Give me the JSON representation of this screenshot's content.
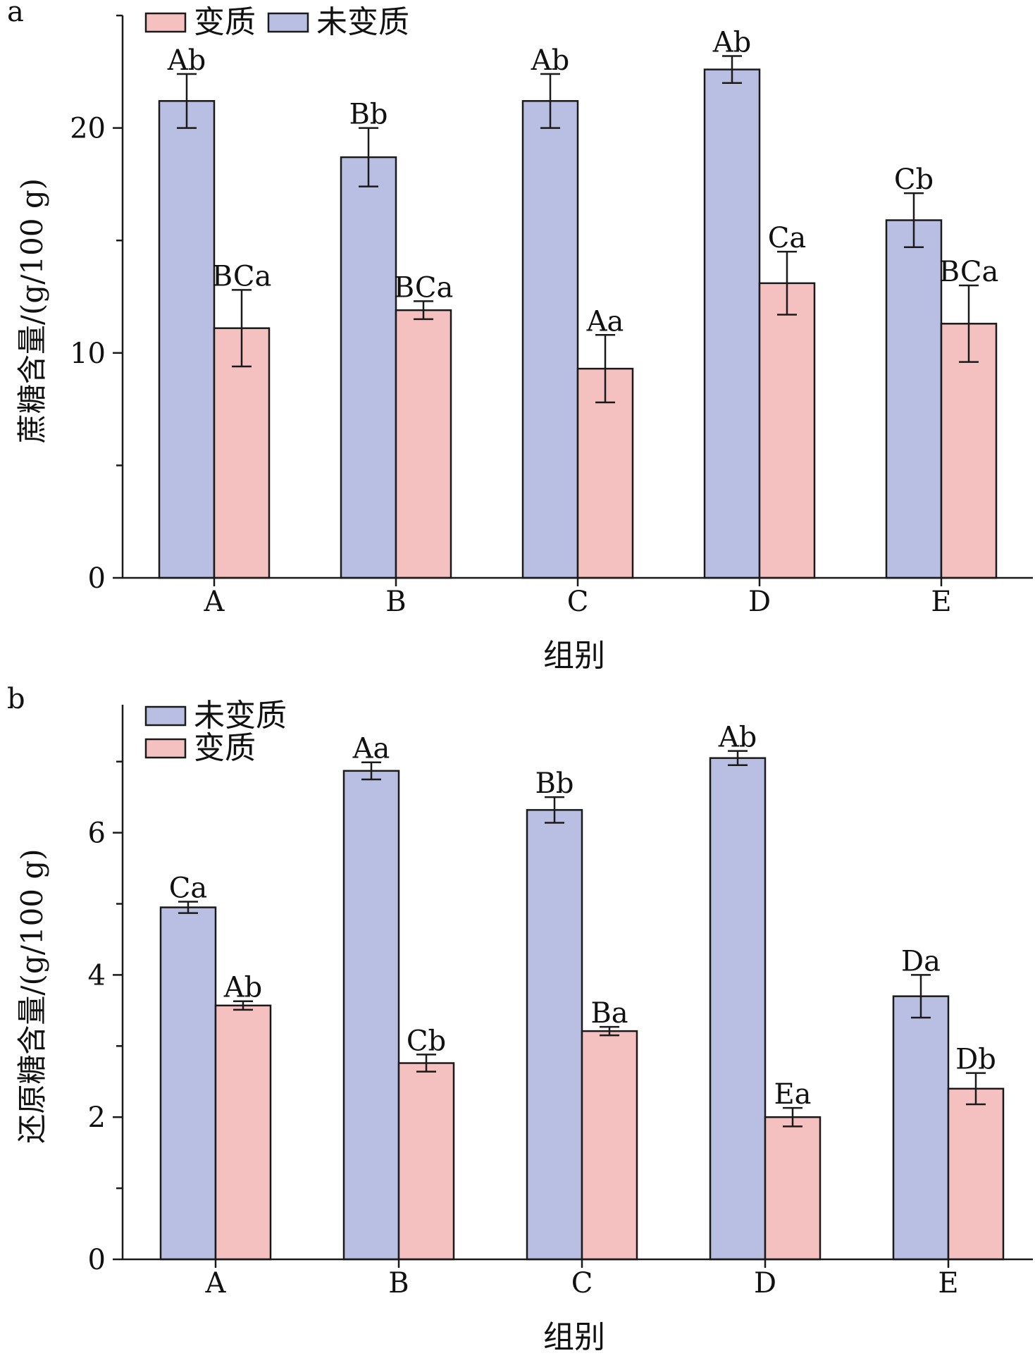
{
  "colors": {
    "unaltered": "#b9bfe3",
    "altered": "#f4c0c0",
    "stroke": "#1a1a1a"
  },
  "chart_data": [
    {
      "type": "bar",
      "panel_label": "a",
      "categories": [
        "A",
        "B",
        "C",
        "D",
        "E"
      ],
      "xlabel": "组别",
      "ylabel": "蔗糖含量/(g/100 g)",
      "ylim": [
        0,
        25
      ],
      "yticks": [
        0,
        10,
        20
      ],
      "legend_position": "top",
      "legend_order": [
        "altered",
        "unaltered"
      ],
      "series": [
        {
          "key": "unaltered",
          "name": "未变质",
          "values": [
            21.2,
            18.7,
            21.2,
            22.6,
            15.9
          ],
          "errors": [
            1.2,
            1.3,
            1.2,
            0.6,
            1.2
          ],
          "labels": [
            "Ab",
            "Bb",
            "Ab",
            "Ab",
            "Cb"
          ]
        },
        {
          "key": "altered",
          "name": "变质",
          "values": [
            11.1,
            11.9,
            9.3,
            13.1,
            11.3
          ],
          "errors": [
            1.7,
            0.4,
            1.5,
            1.4,
            1.7
          ],
          "labels": [
            "BCa",
            "BCa",
            "Aa",
            "Ca",
            "BCa"
          ]
        }
      ]
    },
    {
      "type": "bar",
      "panel_label": "b",
      "categories": [
        "A",
        "B",
        "C",
        "D",
        "E"
      ],
      "xlabel": "组别",
      "ylabel": "还原糖含量/(g/100 g)",
      "ylim": [
        0,
        7.8
      ],
      "yticks": [
        0,
        2,
        4,
        6
      ],
      "legend_position": "top-left",
      "legend_order": [
        "unaltered",
        "altered"
      ],
      "series": [
        {
          "key": "unaltered",
          "name": "未变质",
          "values": [
            4.95,
            6.87,
            6.32,
            7.05,
            3.7
          ],
          "errors": [
            0.08,
            0.12,
            0.18,
            0.1,
            0.3
          ],
          "labels": [
            "Ca",
            "Aa",
            "Bb",
            "Ab",
            "Da"
          ]
        },
        {
          "key": "altered",
          "name": "变质",
          "values": [
            3.57,
            2.76,
            3.21,
            2.0,
            2.4
          ],
          "errors": [
            0.06,
            0.12,
            0.06,
            0.13,
            0.22
          ],
          "labels": [
            "Ab",
            "Cb",
            "Ba",
            "Ea",
            "Db"
          ]
        }
      ]
    }
  ]
}
